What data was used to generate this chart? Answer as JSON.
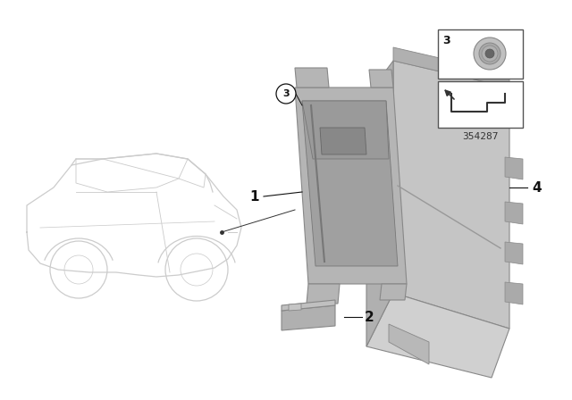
{
  "bg_color": "#ffffff",
  "part_number": "354287",
  "part1_color": "#b8b8b8",
  "part1_edge": "#888888",
  "part4_color": "#c0c0c0",
  "part4_edge": "#888888",
  "part2_color": "#b0b0b0",
  "car_color": "#cccccc",
  "label_color": "#111111",
  "box_bg": "#ffffff",
  "box_edge": "#555555"
}
